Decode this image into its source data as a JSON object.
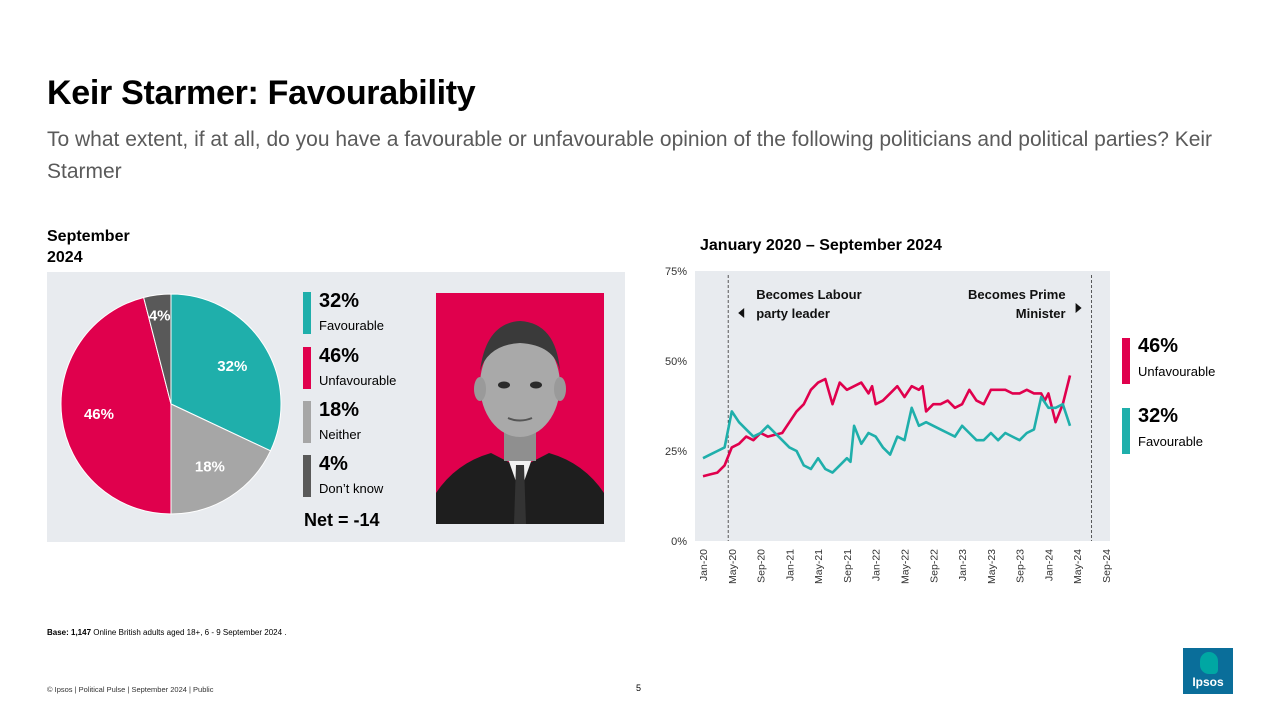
{
  "title": "Keir Starmer: Favourability",
  "subtitle": "To what extent, if at all, do you have a favourable or unfavourable opinion of the following politicians and political parties? Keir Starmer",
  "period_label": "September 2024",
  "colors": {
    "favourable": "#1fafab",
    "unfavourable": "#e0004d",
    "neither": "#a6a6a6",
    "dont_know": "#595959",
    "panel": "#e8ebef"
  },
  "legend": [
    {
      "pct": "32%",
      "label": "Favourable"
    },
    {
      "pct": "46%",
      "label": "Unfavourable"
    },
    {
      "pct": "18%",
      "label": "Neither"
    },
    {
      "pct": "4%",
      "label": "Don’t know"
    }
  ],
  "net": "Net = -14",
  "photo_alt": "portrait-photo",
  "line_title": "January 2020 – September 2024",
  "annotations": {
    "labour_leader": [
      "Becomes Labour",
      "party leader"
    ],
    "prime_minister": [
      "Becomes Prime",
      "Minister"
    ]
  },
  "right_legend": [
    {
      "pct": "46%",
      "label": "Unfavourable"
    },
    {
      "pct": "32%",
      "label": "Favourable"
    }
  ],
  "base": {
    "bold": "Base: 1,147",
    "text": " Online British adults aged 18+,  6 - 9 September 2024 ."
  },
  "footer": "© Ipsos | Political Pulse | September 2024 | Public",
  "page_number": "5",
  "logo_text": "Ipsos",
  "chart_data": [
    {
      "type": "pie",
      "title": "September 2024",
      "categories": [
        "Favourable",
        "Neither",
        "Unfavourable",
        "Don’t know"
      ],
      "values": [
        32,
        18,
        46,
        4
      ],
      "labels": [
        "32%",
        "18%",
        "46%",
        "4%"
      ]
    },
    {
      "type": "line",
      "title": "January 2020 – September 2024",
      "x_ticks": [
        "Jan-20",
        "May-20",
        "Sep-20",
        "Jan-21",
        "May-21",
        "Sep-21",
        "Jan-22",
        "May-22",
        "Sep-22",
        "Jan-23",
        "May-23",
        "Sep-23",
        "Jan-24",
        "May-24",
        "Sep-24"
      ],
      "y_ticks": [
        "0%",
        "25%",
        "50%",
        "75%"
      ],
      "ylim": [
        0,
        75
      ],
      "xlim": [
        0,
        56
      ],
      "events": [
        {
          "x": 3.5,
          "label": "Becomes Labour party leader"
        },
        {
          "x": 54,
          "label": "Becomes Prime Minister"
        }
      ],
      "series": [
        {
          "name": "Unfavourable",
          "color": "#e0004d",
          "points": [
            [
              0,
              18
            ],
            [
              1,
              18.5
            ],
            [
              2,
              19
            ],
            [
              3,
              21
            ],
            [
              4,
              26
            ],
            [
              5,
              27
            ],
            [
              6,
              29
            ],
            [
              7,
              28
            ],
            [
              8,
              30
            ],
            [
              9,
              29
            ],
            [
              10,
              29.5
            ],
            [
              11,
              30
            ],
            [
              12,
              33
            ],
            [
              13,
              36
            ],
            [
              14,
              38
            ],
            [
              15,
              42
            ],
            [
              16,
              44
            ],
            [
              17,
              45
            ],
            [
              18,
              38
            ],
            [
              19,
              44
            ],
            [
              20,
              42
            ],
            [
              21,
              43
            ],
            [
              22,
              44
            ],
            [
              23,
              41
            ],
            [
              23.5,
              43
            ],
            [
              24,
              38
            ],
            [
              25,
              39
            ],
            [
              26,
              41
            ],
            [
              27,
              43
            ],
            [
              28,
              40
            ],
            [
              29,
              43
            ],
            [
              30,
              42
            ],
            [
              30.5,
              43
            ],
            [
              31,
              36
            ],
            [
              32,
              38
            ],
            [
              33,
              38
            ],
            [
              34,
              39
            ],
            [
              35,
              37
            ],
            [
              36,
              38
            ],
            [
              37,
              42
            ],
            [
              38,
              39
            ],
            [
              39,
              38
            ],
            [
              40,
              42
            ],
            [
              41,
              42
            ],
            [
              42,
              42
            ],
            [
              43,
              41
            ],
            [
              44,
              41
            ],
            [
              45,
              42
            ],
            [
              46,
              41
            ],
            [
              47,
              41
            ],
            [
              47.5,
              39
            ],
            [
              48,
              41
            ],
            [
              49,
              33
            ],
            [
              50,
              38
            ],
            [
              51,
              46
            ]
          ]
        },
        {
          "name": "Favourable",
          "color": "#1fafab",
          "points": [
            [
              0,
              23
            ],
            [
              1,
              24
            ],
            [
              2,
              25
            ],
            [
              3,
              26
            ],
            [
              4,
              36
            ],
            [
              5,
              33
            ],
            [
              6,
              31
            ],
            [
              7,
              29
            ],
            [
              8,
              30
            ],
            [
              9,
              32
            ],
            [
              10,
              30
            ],
            [
              11,
              28
            ],
            [
              12,
              26
            ],
            [
              13,
              25
            ],
            [
              14,
              21
            ],
            [
              15,
              20
            ],
            [
              16,
              23
            ],
            [
              17,
              20
            ],
            [
              18,
              19
            ],
            [
              19,
              21
            ],
            [
              20,
              23
            ],
            [
              20.5,
              22
            ],
            [
              21,
              32
            ],
            [
              22,
              27
            ],
            [
              23,
              30
            ],
            [
              24,
              29
            ],
            [
              25,
              26
            ],
            [
              26,
              24
            ],
            [
              27,
              29
            ],
            [
              28,
              28
            ],
            [
              29,
              37
            ],
            [
              30,
              32
            ],
            [
              31,
              33
            ],
            [
              32,
              32
            ],
            [
              33,
              31
            ],
            [
              34,
              30
            ],
            [
              35,
              29
            ],
            [
              36,
              32
            ],
            [
              37,
              30
            ],
            [
              38,
              28
            ],
            [
              39,
              28
            ],
            [
              40,
              30
            ],
            [
              41,
              28
            ],
            [
              42,
              30
            ],
            [
              43,
              29
            ],
            [
              44,
              28
            ],
            [
              45,
              30
            ],
            [
              46,
              31
            ],
            [
              47,
              40
            ],
            [
              48,
              37
            ],
            [
              49,
              37
            ],
            [
              50,
              38
            ],
            [
              51,
              32
            ]
          ]
        }
      ]
    }
  ]
}
